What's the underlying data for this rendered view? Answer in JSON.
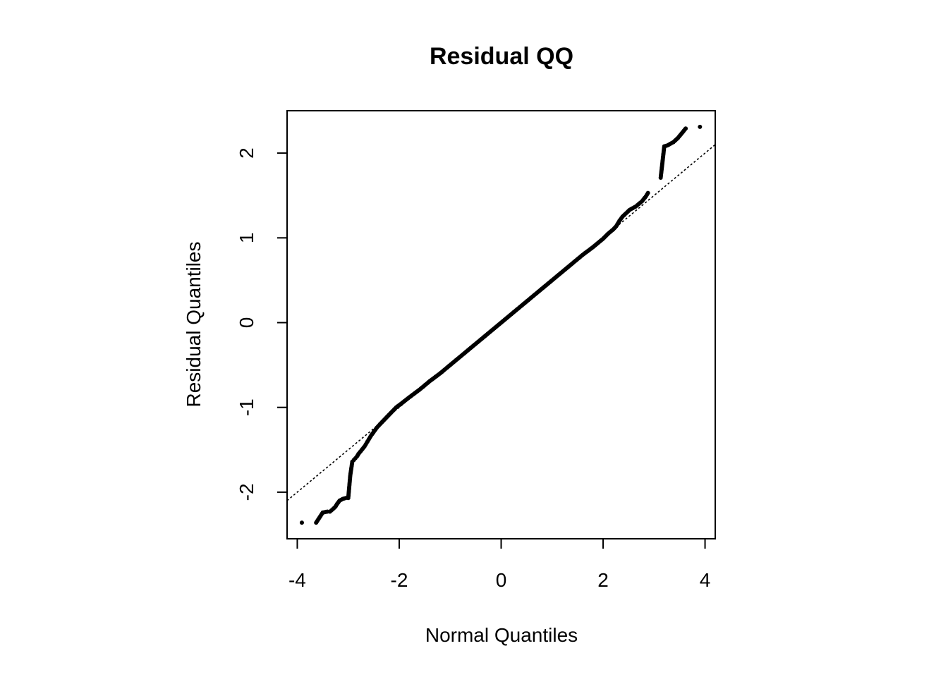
{
  "chart_data": {
    "type": "scatter",
    "title": "Residual QQ",
    "xlabel": "Normal Quantiles",
    "ylabel": "Residual Quantiles",
    "xlim": [
      -4.2,
      4.2
    ],
    "ylim": [
      -2.55,
      2.5
    ],
    "xticks": [
      -4,
      -2,
      0,
      2,
      4
    ],
    "xtick_labels": [
      "-4",
      "-2",
      "0",
      "2",
      "4"
    ],
    "yticks": [
      -2,
      -1,
      0,
      1,
      2
    ],
    "ytick_labels": [
      "-2",
      "-1",
      "0",
      "1",
      "2"
    ],
    "grid": false,
    "reference_line": {
      "style": "dotted",
      "slope": 0.5,
      "intercept": 0.0
    },
    "series": [
      {
        "marker": "dot",
        "color": "#000000",
        "points": [
          [
            -3.91,
            -2.36
          ],
          [
            -3.63,
            -2.36
          ],
          [
            -3.5,
            -2.24
          ],
          [
            -3.41,
            -2.23
          ],
          [
            -3.36,
            -2.23
          ],
          [
            -3.3,
            -2.2
          ],
          [
            -3.25,
            -2.17
          ],
          [
            -3.22,
            -2.14
          ],
          [
            -3.17,
            -2.1
          ],
          [
            -3.11,
            -2.08
          ],
          [
            -3.05,
            -2.07
          ],
          [
            -3.0,
            -2.07
          ],
          [
            -2.96,
            -1.8
          ],
          [
            -2.92,
            -1.64
          ],
          [
            -2.89,
            -1.62
          ],
          [
            -2.86,
            -1.6
          ],
          [
            -2.83,
            -1.58
          ],
          [
            -2.8,
            -1.55
          ],
          [
            -2.76,
            -1.52
          ],
          [
            -2.72,
            -1.49
          ],
          [
            -2.68,
            -1.46
          ],
          [
            -2.64,
            -1.42
          ],
          [
            -2.6,
            -1.38
          ],
          [
            -2.55,
            -1.33
          ],
          [
            -2.5,
            -1.29
          ],
          [
            -2.44,
            -1.24
          ],
          [
            -2.38,
            -1.2
          ],
          [
            -2.3,
            -1.15
          ],
          [
            -2.22,
            -1.1
          ],
          [
            -2.14,
            -1.05
          ],
          [
            -2.06,
            -1.0
          ],
          [
            -1.97,
            -0.96
          ],
          [
            -1.8,
            -0.88
          ],
          [
            -1.6,
            -0.79
          ],
          [
            -1.4,
            -0.69
          ],
          [
            -1.2,
            -0.6
          ],
          [
            -1.0,
            -0.5
          ],
          [
            -0.8,
            -0.4
          ],
          [
            -0.6,
            -0.3
          ],
          [
            -0.4,
            -0.2
          ],
          [
            -0.2,
            -0.1
          ],
          [
            0.0,
            0.0
          ],
          [
            0.2,
            0.1
          ],
          [
            0.4,
            0.2
          ],
          [
            0.6,
            0.3
          ],
          [
            0.8,
            0.4
          ],
          [
            1.0,
            0.5
          ],
          [
            1.2,
            0.6
          ],
          [
            1.4,
            0.7
          ],
          [
            1.6,
            0.8
          ],
          [
            1.8,
            0.89
          ],
          [
            2.0,
            0.99
          ],
          [
            2.1,
            1.05
          ],
          [
            2.2,
            1.1
          ],
          [
            2.26,
            1.14
          ],
          [
            2.32,
            1.2
          ],
          [
            2.38,
            1.25
          ],
          [
            2.45,
            1.29
          ],
          [
            2.52,
            1.33
          ],
          [
            2.58,
            1.35
          ],
          [
            2.64,
            1.37
          ],
          [
            2.7,
            1.4
          ],
          [
            2.76,
            1.43
          ],
          [
            2.8,
            1.46
          ],
          [
            2.84,
            1.49
          ],
          [
            2.88,
            1.53
          ],
          [
            3.13,
            1.71
          ],
          [
            3.2,
            2.08
          ],
          [
            3.26,
            2.09
          ],
          [
            3.32,
            2.11
          ],
          [
            3.38,
            2.13
          ],
          [
            3.47,
            2.18
          ],
          [
            3.62,
            2.29
          ],
          [
            3.9,
            2.31
          ]
        ]
      }
    ]
  }
}
